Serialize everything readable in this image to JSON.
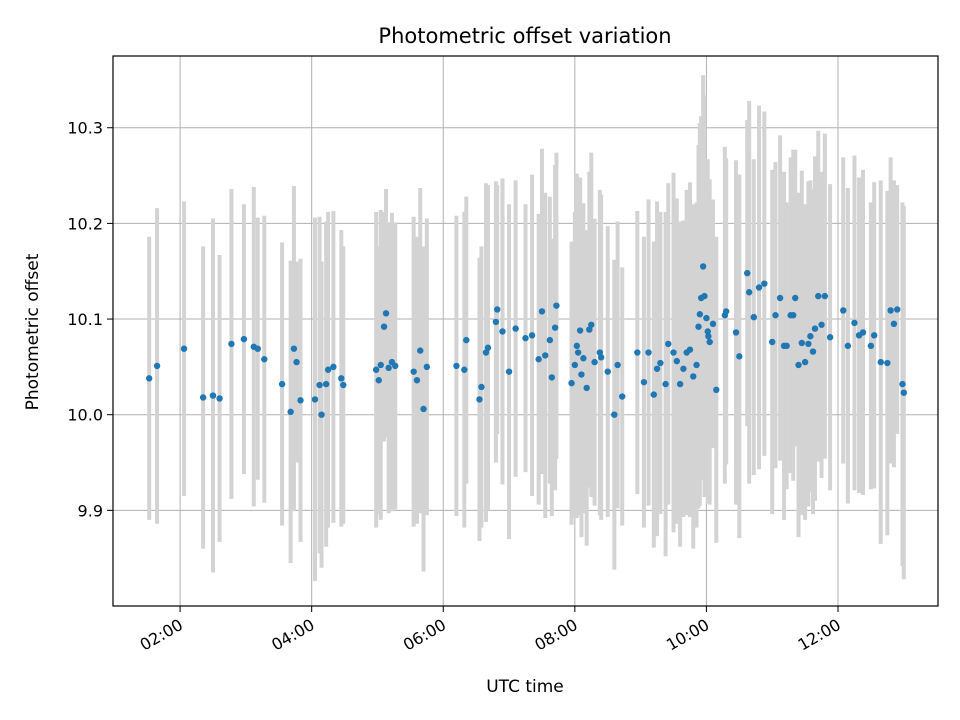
{
  "chart_data": {
    "type": "scatter",
    "title": "Photometric offset variation",
    "xlabel": "UTC time",
    "ylabel": "Photometric offset",
    "x_unit": "UTC hour",
    "xlim": [
      0.98,
      13.52
    ],
    "ylim": [
      9.8,
      10.375
    ],
    "x_ticks": [
      {
        "value": 2,
        "label": "02:00"
      },
      {
        "value": 4,
        "label": "04:00"
      },
      {
        "value": 6,
        "label": "06:00"
      },
      {
        "value": 8,
        "label": "08:00"
      },
      {
        "value": 10,
        "label": "10:00"
      },
      {
        "value": 12,
        "label": "12:00"
      }
    ],
    "y_ticks": [
      {
        "value": 9.9,
        "label": "9.9"
      },
      {
        "value": 10.0,
        "label": "10.0"
      },
      {
        "value": 10.1,
        "label": "10.1"
      },
      {
        "value": 10.2,
        "label": "10.2"
      },
      {
        "value": 10.3,
        "label": "10.3"
      }
    ],
    "grid": true,
    "error_bar_color": "#d3d3d3",
    "marker_color": "#1f77b4",
    "points": [
      [
        1.53,
        10.038,
        0.148
      ],
      [
        1.65,
        10.051,
        0.165
      ],
      [
        2.06,
        10.069,
        0.154
      ],
      [
        2.35,
        10.018,
        0.158
      ],
      [
        2.5,
        10.02,
        0.185
      ],
      [
        2.6,
        10.017,
        0.15
      ],
      [
        2.78,
        10.074,
        0.162
      ],
      [
        2.97,
        10.079,
        0.141
      ],
      [
        3.12,
        10.071,
        0.167
      ],
      [
        3.18,
        10.069,
        0.137
      ],
      [
        3.28,
        10.058,
        0.15
      ],
      [
        3.55,
        10.032,
        0.148
      ],
      [
        3.68,
        10.003,
        0.158
      ],
      [
        3.73,
        10.069,
        0.17
      ],
      [
        3.77,
        10.055,
        0.105
      ],
      [
        3.83,
        10.015,
        0.148
      ],
      [
        4.05,
        10.016,
        0.19
      ],
      [
        4.12,
        10.031,
        0.176
      ],
      [
        4.15,
        10.0,
        0.16
      ],
      [
        4.22,
        10.032,
        0.17
      ],
      [
        4.25,
        10.047,
        0.165
      ],
      [
        4.33,
        10.05,
        0.163
      ],
      [
        4.45,
        10.038,
        0.155
      ],
      [
        4.48,
        10.031,
        0.145
      ],
      [
        4.98,
        10.047,
        0.165
      ],
      [
        5.02,
        10.036,
        0.14
      ],
      [
        5.05,
        10.052,
        0.162
      ],
      [
        5.1,
        10.092,
        0.12
      ],
      [
        5.13,
        10.106,
        0.13
      ],
      [
        5.17,
        10.049,
        0.152
      ],
      [
        5.22,
        10.055,
        0.156
      ],
      [
        5.27,
        10.051,
        0.15
      ],
      [
        5.55,
        10.045,
        0.162
      ],
      [
        5.6,
        10.036,
        0.15
      ],
      [
        5.65,
        10.067,
        0.17
      ],
      [
        5.7,
        10.006,
        0.17
      ],
      [
        5.75,
        10.05,
        0.155
      ],
      [
        6.2,
        10.051,
        0.157
      ],
      [
        6.32,
        10.047,
        0.165
      ],
      [
        6.35,
        10.078,
        0.15
      ],
      [
        6.55,
        10.016,
        0.148
      ],
      [
        6.58,
        10.029,
        0.147
      ],
      [
        6.65,
        10.065,
        0.177
      ],
      [
        6.68,
        10.07,
        0.17
      ],
      [
        6.8,
        10.097,
        0.147
      ],
      [
        6.82,
        10.11,
        0.13
      ],
      [
        6.9,
        10.087,
        0.16
      ],
      [
        7.0,
        10.045,
        0.175
      ],
      [
        7.1,
        10.09,
        0.155
      ],
      [
        7.25,
        10.08,
        0.14
      ],
      [
        7.35,
        10.083,
        0.168
      ],
      [
        7.45,
        10.058,
        0.152
      ],
      [
        7.5,
        10.108,
        0.17
      ],
      [
        7.55,
        10.062,
        0.17
      ],
      [
        7.62,
        10.078,
        0.15
      ],
      [
        7.65,
        10.039,
        0.145
      ],
      [
        7.7,
        10.091,
        0.17
      ],
      [
        7.72,
        10.114,
        0.16
      ],
      [
        7.95,
        10.033,
        0.148
      ],
      [
        8.0,
        10.052,
        0.16
      ],
      [
        8.03,
        10.072,
        0.18
      ],
      [
        8.05,
        10.065,
        0.17
      ],
      [
        8.08,
        10.088,
        0.16
      ],
      [
        8.1,
        10.042,
        0.17
      ],
      [
        8.13,
        10.059,
        0.162
      ],
      [
        8.18,
        10.028,
        0.165
      ],
      [
        8.22,
        10.089,
        0.165
      ],
      [
        8.25,
        10.094,
        0.18
      ],
      [
        8.3,
        10.055,
        0.15
      ],
      [
        8.38,
        10.065,
        0.17
      ],
      [
        8.4,
        10.06,
        0.17
      ],
      [
        8.5,
        10.045,
        0.152
      ],
      [
        8.6,
        10.0,
        0.162
      ],
      [
        8.65,
        10.052,
        0.15
      ],
      [
        8.72,
        10.019,
        0.135
      ],
      [
        8.95,
        10.065,
        0.148
      ],
      [
        9.05,
        10.034,
        0.152
      ],
      [
        9.12,
        10.065,
        0.16
      ],
      [
        9.2,
        10.021,
        0.16
      ],
      [
        9.25,
        10.048,
        0.175
      ],
      [
        9.3,
        10.054,
        0.158
      ],
      [
        9.38,
        10.032,
        0.18
      ],
      [
        9.42,
        10.074,
        0.168
      ],
      [
        9.5,
        10.065,
        0.188
      ],
      [
        9.55,
        10.056,
        0.17
      ],
      [
        9.6,
        10.032,
        0.17
      ],
      [
        9.65,
        10.048,
        0.155
      ],
      [
        9.7,
        10.065,
        0.17
      ],
      [
        9.75,
        10.068,
        0.175
      ],
      [
        9.8,
        10.04,
        0.18
      ],
      [
        9.85,
        10.052,
        0.17
      ],
      [
        9.88,
        10.092,
        0.19
      ],
      [
        9.9,
        10.105,
        0.2
      ],
      [
        9.92,
        10.122,
        0.19
      ],
      [
        9.95,
        10.155,
        0.2
      ],
      [
        9.97,
        10.124,
        0.21
      ],
      [
        10.0,
        10.101,
        0.15
      ],
      [
        10.02,
        10.087,
        0.18
      ],
      [
        10.03,
        10.082,
        0.16
      ],
      [
        10.05,
        10.076,
        0.17
      ],
      [
        10.1,
        10.095,
        0.13
      ],
      [
        10.15,
        10.026,
        0.16
      ],
      [
        10.28,
        10.104,
        0.176
      ],
      [
        10.3,
        10.108,
        0.16
      ],
      [
        10.45,
        10.086,
        0.18
      ],
      [
        10.5,
        10.061,
        0.19
      ],
      [
        10.62,
        10.148,
        0.16
      ],
      [
        10.65,
        10.128,
        0.2
      ],
      [
        10.72,
        10.102,
        0.165
      ],
      [
        10.8,
        10.133,
        0.19
      ],
      [
        10.88,
        10.137,
        0.18
      ],
      [
        11.0,
        10.076,
        0.18
      ],
      [
        11.05,
        10.104,
        0.16
      ],
      [
        11.12,
        10.122,
        0.17
      ],
      [
        11.18,
        10.072,
        0.182
      ],
      [
        11.22,
        10.072,
        0.15
      ],
      [
        11.28,
        10.104,
        0.165
      ],
      [
        11.32,
        10.104,
        0.173
      ],
      [
        11.35,
        10.122,
        0.155
      ],
      [
        11.4,
        10.052,
        0.18
      ],
      [
        11.45,
        10.075,
        0.18
      ],
      [
        11.5,
        10.055,
        0.165
      ],
      [
        11.55,
        10.074,
        0.17
      ],
      [
        11.58,
        10.082,
        0.163
      ],
      [
        11.62,
        10.066,
        0.17
      ],
      [
        11.65,
        10.09,
        0.18
      ],
      [
        11.7,
        10.124,
        0.173
      ],
      [
        11.75,
        10.094,
        0.16
      ],
      [
        11.8,
        10.124,
        0.17
      ],
      [
        11.88,
        10.081,
        0.16
      ],
      [
        12.08,
        10.109,
        0.16
      ],
      [
        12.15,
        10.072,
        0.165
      ],
      [
        12.25,
        10.096,
        0.175
      ],
      [
        12.32,
        10.083,
        0.165
      ],
      [
        12.38,
        10.086,
        0.17
      ],
      [
        12.5,
        10.072,
        0.15
      ],
      [
        12.55,
        10.083,
        0.16
      ],
      [
        12.65,
        10.055,
        0.19
      ],
      [
        12.75,
        10.054,
        0.18
      ],
      [
        12.8,
        10.109,
        0.16
      ],
      [
        12.85,
        10.095,
        0.15
      ],
      [
        12.9,
        10.11,
        0.13
      ],
      [
        12.98,
        10.032,
        0.19
      ],
      [
        13.0,
        10.023,
        0.195
      ]
    ]
  }
}
